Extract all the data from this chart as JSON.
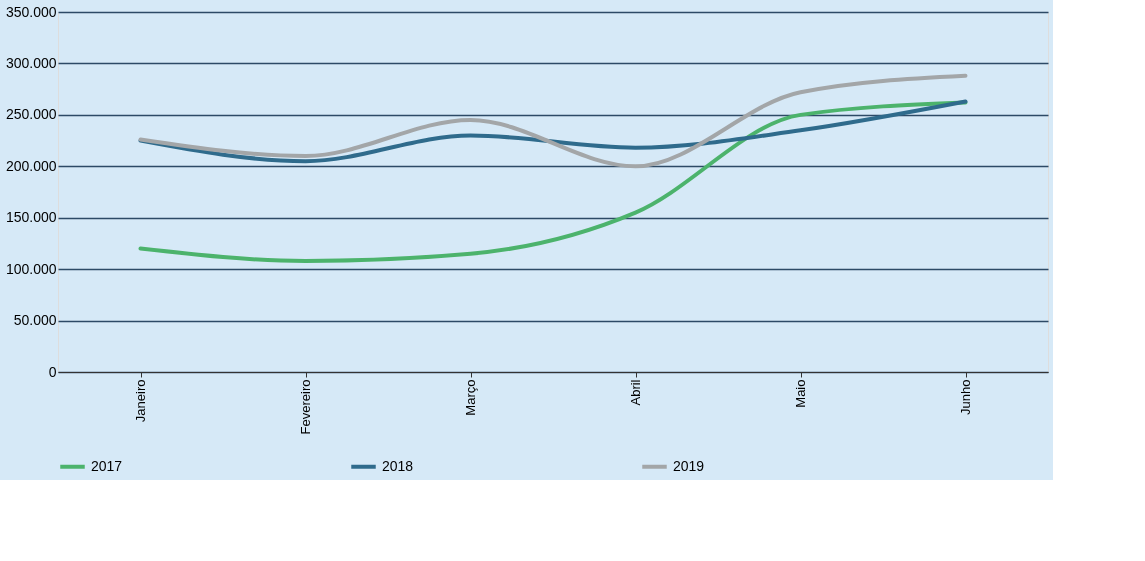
{
  "chart_data": {
    "type": "line",
    "categories": [
      "Janeiro",
      "Fevereiro",
      "Março",
      "Abril",
      "Maio",
      "Junho"
    ],
    "series": [
      {
        "name": "2017",
        "color": "#4cb36c",
        "values": [
          120000,
          108000,
          115000,
          155000,
          250000,
          262000
        ]
      },
      {
        "name": "2018",
        "color": "#2f6b8c",
        "values": [
          225000,
          205000,
          230000,
          218000,
          235000,
          263000
        ]
      },
      {
        "name": "2019",
        "color": "#a3a6a8",
        "values": [
          226000,
          210000,
          245000,
          200000,
          272000,
          288000
        ]
      }
    ],
    "ylim": [
      0,
      350000
    ],
    "yticks": [
      {
        "value": 0,
        "label": "0"
      },
      {
        "value": 50000,
        "label": "50.000"
      },
      {
        "value": 100000,
        "label": "100.000"
      },
      {
        "value": 150000,
        "label": "150.000"
      },
      {
        "value": 200000,
        "label": "200.000"
      },
      {
        "value": 250000,
        "label": "250.000"
      },
      {
        "value": 300000,
        "label": "300.000"
      },
      {
        "value": 350000,
        "label": "350.000"
      }
    ],
    "grid": "y",
    "legend": "bottom",
    "marker": "none",
    "line_style": "solid"
  }
}
